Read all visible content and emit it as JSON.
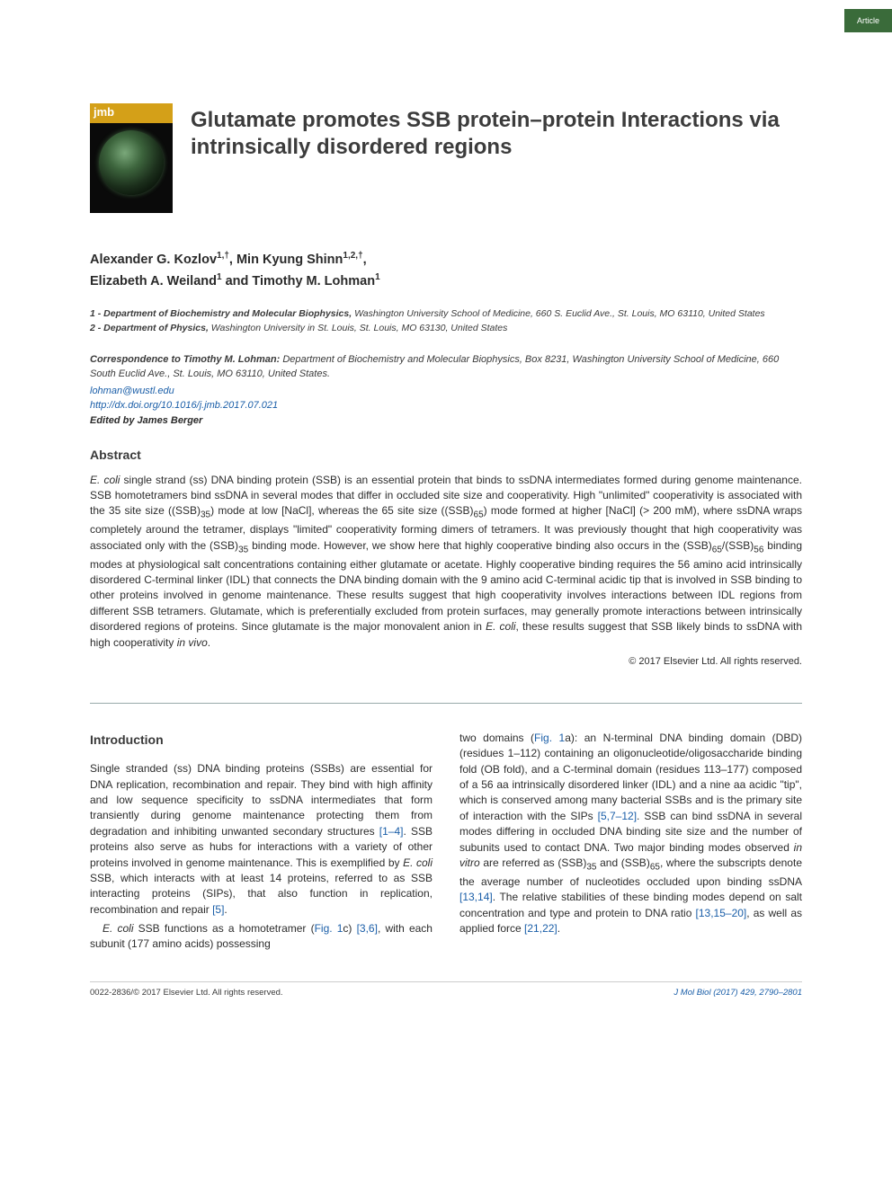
{
  "page_tab": "Article",
  "journal_band": "jmb",
  "title": "Glutamate promotes SSB protein–protein Interactions via intrinsically disordered regions",
  "authors_html": "Alexander G. Kozlov<sup>1,†</sup>, Min Kyung Shinn<sup>1,2,†</sup>, Elizabeth A. Weiland<sup>1</sup> and Timothy M. Lohman<sup>1</sup>",
  "affiliations": [
    {
      "num": "1 - ",
      "dept": "Department of Biochemistry and Molecular Biophysics,",
      "rest": " Washington University School of Medicine, 660 S. Euclid Ave., St. Louis, MO 63110, United States"
    },
    {
      "num": "2 - ",
      "dept": "Department of Physics,",
      "rest": " Washington University in St. Louis, St. Louis, MO 63130, United States"
    }
  ],
  "correspondence": {
    "label": "Correspondence to Timothy M. Lohman:",
    "text": " Department of Biochemistry and Molecular Biophysics, Box 8231, Washington University School of Medicine, 660 South Euclid Ave., St. Louis, MO 63110, United States."
  },
  "email": "lohman@wustl.edu",
  "doi": "http://dx.doi.org/10.1016/j.jmb.2017.07.021",
  "edited_by": "Edited by James Berger",
  "abstract_heading": "Abstract",
  "abstract": "E. coli single strand (ss) DNA binding protein (SSB) is an essential protein that binds to ssDNA intermediates formed during genome maintenance. SSB homotetramers bind ssDNA in several modes that differ in occluded site size and cooperativity. High \"unlimited\" cooperativity is associated with the 35 site size ((SSB)₃₅) mode at low [NaCl], whereas the 65 site size ((SSB)₆₅) mode formed at higher [NaCl] (> 200 mM), where ssDNA wraps completely around the tetramer, displays \"limited\" cooperativity forming dimers of tetramers. It was previously thought that high cooperativity was associated only with the (SSB)₃₅ binding mode. However, we show here that highly cooperative binding also occurs in the (SSB)₆₅/(SSB)₅₆ binding modes at physiological salt concentrations containing either glutamate or acetate. Highly cooperative binding requires the 56 amino acid intrinsically disordered C-terminal linker (IDL) that connects the DNA binding domain with the 9 amino acid C-terminal acidic tip that is involved in SSB binding to other proteins involved in genome maintenance. These results suggest that high cooperativity involves interactions between IDL regions from different SSB tetramers. Glutamate, which is preferentially excluded from protein surfaces, may generally promote interactions between intrinsically disordered regions of proteins. Since glutamate is the major monovalent anion in E. coli, these results suggest that SSB likely binds to ssDNA with high cooperativity in vivo.",
  "copyright": "© 2017 Elsevier Ltd. All rights reserved.",
  "intro_heading": "Introduction",
  "col1_p1": "Single stranded (ss) DNA binding proteins (SSBs) are essential for DNA replication, recombination and repair. They bind with high affinity and low sequence specificity to ssDNA intermediates that form transiently during genome maintenance protecting them from degradation and inhibiting unwanted secondary structures [1–4]. SSB proteins also serve as hubs for interactions with a variety of other proteins involved in genome maintenance. This is exemplified by E. coli SSB, which interacts with at least 14 proteins, referred to as SSB interacting proteins (SIPs), that also function in replication, recombination and repair [5].",
  "col1_p2": "E. coli SSB functions as a homotetramer (Fig. 1c) [3,6], with each subunit (177 amino acids) possessing",
  "col2_p1": "two domains (Fig. 1a): an N-terminal DNA binding domain (DBD) (residues 1–112) containing an oligonucleotide/oligosaccharide binding fold (OB fold), and a C-terminal domain (residues 113–177) composed of a 56 aa intrinsically disordered linker (IDL) and a nine aa acidic \"tip\", which is conserved among many bacterial SSBs and is the primary site of interaction with the SIPs [5,7–12]. SSB can bind ssDNA in several modes differing in occluded DNA binding site size and the number of subunits used to contact DNA. Two major binding modes observed in vitro are referred as (SSB)₃₅ and (SSB)₆₅, where the subscripts denote the average number of nucleotides occluded upon binding ssDNA [13,14]. The relative stabilities of these binding modes depend on salt concentration and type and protein to DNA ratio [13,15–20], as well as applied force [21,22].",
  "refs": {
    "r1_4": "[1–4]",
    "r5": "[5]",
    "r3_6": "[3,6]",
    "r5_7_12": "[5,7–12]",
    "r13_14": "[13,14]",
    "r13_15_20": "[13,15–20]",
    "r21_22": "[21,22]",
    "fig1a": "Fig. 1",
    "fig1c": "Fig. 1"
  },
  "footer_left": "0022-2836/© 2017 Elsevier Ltd. All rights reserved.",
  "footer_right": "J Mol Biol (2017) 429, 2790–2801",
  "colors": {
    "tab_bg": "#3a6b3a",
    "link": "#1a5ea8",
    "text": "#2c2c2c",
    "heading": "#3a3a3a",
    "cover_band": "#d4a018"
  }
}
